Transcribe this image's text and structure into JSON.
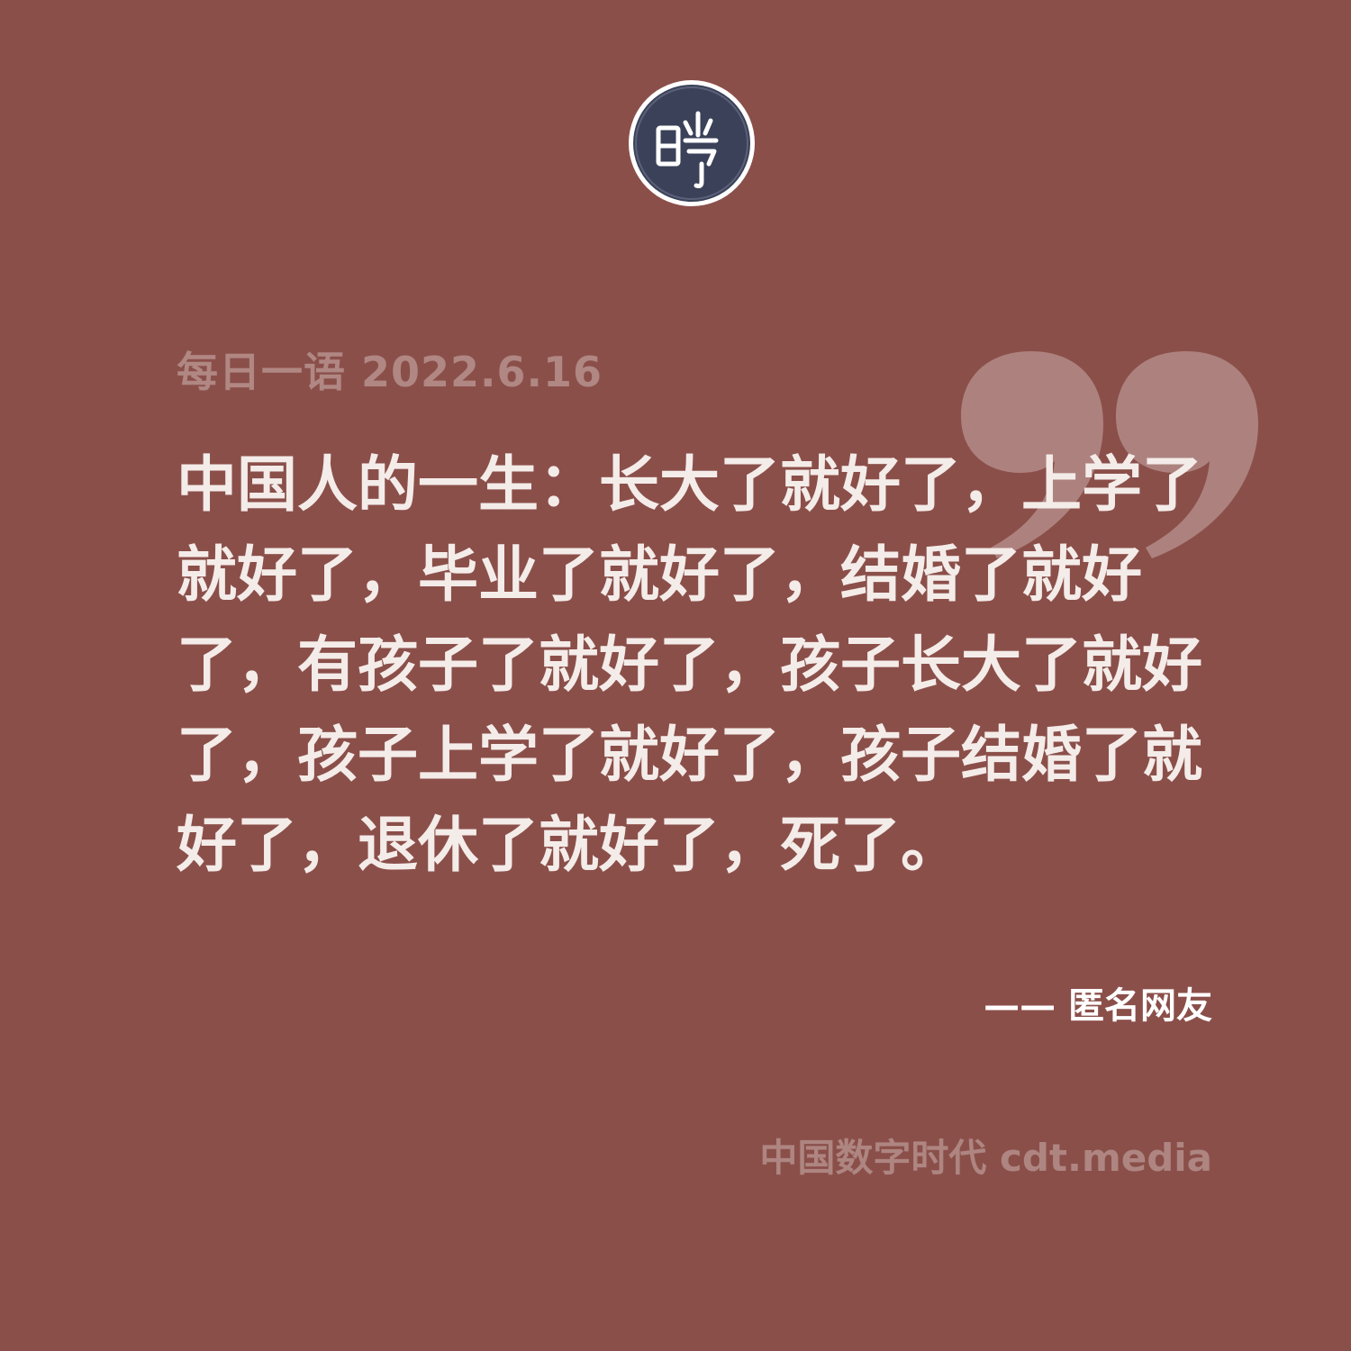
{
  "logo": {
    "name": "circular-seal-logo",
    "fill": "#3a4158",
    "stroke": "#ffffff"
  },
  "decor": {
    "quote_mark_icon": "closing-quote-icon",
    "quote_mark_color": "#ad827e"
  },
  "header": {
    "date_line": "每日一语 2022.6.16"
  },
  "quote": {
    "text": "中国人的一生：长大了就好了，上学了就好了，毕业了就好了，结婚了就好了，有孩子了就好了，孩子长大了就好了，孩子上学了就好了，孩子结婚了就好了，退休了就好了，死了。"
  },
  "attribution": {
    "author": "—— 匿名网友"
  },
  "footer": {
    "brand": "中国数字时代 cdt.media"
  },
  "colors": {
    "background": "#8b4f4a",
    "quote_text": "#f4ece9",
    "muted_text": "#ae8581"
  }
}
